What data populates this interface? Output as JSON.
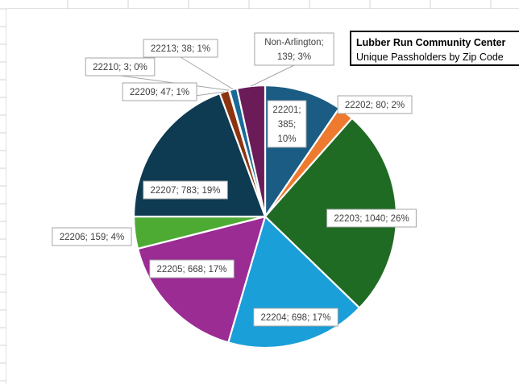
{
  "chart_data": {
    "type": "pie",
    "title": "Lubber Run Community Center",
    "subtitle": "Unique Passholders by Zip Code",
    "slices": [
      {
        "label": "22201",
        "value": 385,
        "percent": "10%",
        "color": "#1A5C84"
      },
      {
        "label": "22202",
        "value": 80,
        "percent": "2%",
        "color": "#EE7A30"
      },
      {
        "label": "22203",
        "value": 1040,
        "percent": "26%",
        "color": "#1F6B24"
      },
      {
        "label": "22204",
        "value": 698,
        "percent": "17%",
        "color": "#1A9FD8"
      },
      {
        "label": "22205",
        "value": 668,
        "percent": "17%",
        "color": "#9A2C93"
      },
      {
        "label": "22206",
        "value": 159,
        "percent": "4%",
        "color": "#4DAA33"
      },
      {
        "label": "22207",
        "value": 783,
        "percent": "19%",
        "color": "#0E3A52"
      },
      {
        "label": "22209",
        "value": 47,
        "percent": "1%",
        "color": "#8C3410"
      },
      {
        "label": "22210",
        "value": 3,
        "percent": "0%",
        "color": "#0F5E22"
      },
      {
        "label": "22213",
        "value": 38,
        "percent": "1%",
        "color": "#1A6A98"
      },
      {
        "label": "Non-Arlington",
        "value": 139,
        "percent": "3%",
        "color": "#6B1B58"
      }
    ],
    "legend": "none",
    "data_labels": "category; value; percent"
  }
}
